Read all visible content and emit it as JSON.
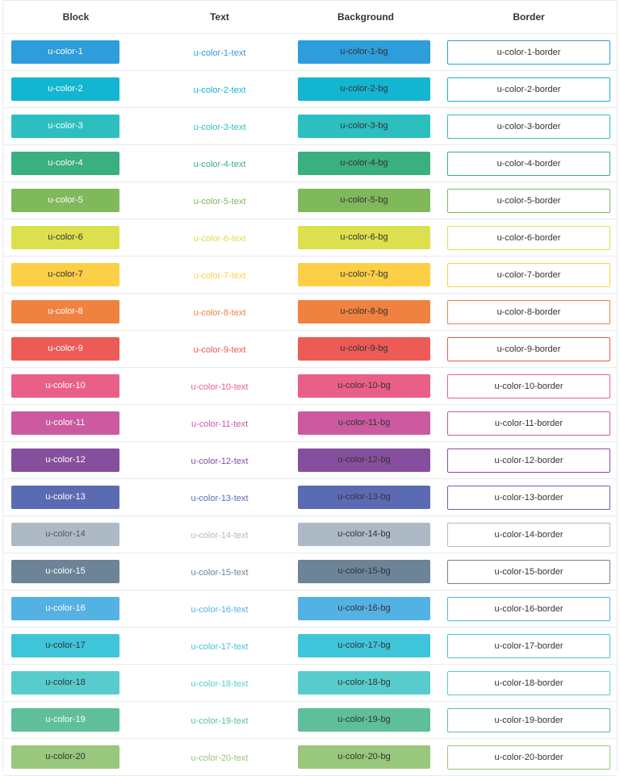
{
  "headers": {
    "block": "Block",
    "text": "Text",
    "background": "Background",
    "border": "Border"
  },
  "rows": [
    {
      "name": "u-color-1",
      "text_label": "u-color-1-text",
      "bg_label": "u-color-1-bg",
      "border_label": "u-color-1-border",
      "color": "#2d9ddb",
      "block_text_color": "#ffffff"
    },
    {
      "name": "u-color-2",
      "text_label": "u-color-2-text",
      "bg_label": "u-color-2-bg",
      "border_label": "u-color-2-border",
      "color": "#13b5d1",
      "block_text_color": "#ffffff"
    },
    {
      "name": "u-color-3",
      "text_label": "u-color-3-text",
      "bg_label": "u-color-3-bg",
      "border_label": "u-color-3-border",
      "color": "#2dbfbf",
      "block_text_color": "#ffffff"
    },
    {
      "name": "u-color-4",
      "text_label": "u-color-4-text",
      "bg_label": "u-color-4-bg",
      "border_label": "u-color-4-border",
      "color": "#3aaf7f",
      "block_text_color": "#ffffff"
    },
    {
      "name": "u-color-5",
      "text_label": "u-color-5-text",
      "bg_label": "u-color-5-bg",
      "border_label": "u-color-5-border",
      "color": "#80b95c",
      "block_text_color": "#ffffff"
    },
    {
      "name": "u-color-6",
      "text_label": "u-color-6-text",
      "bg_label": "u-color-6-bg",
      "border_label": "u-color-6-border",
      "color": "#dde04e",
      "block_text_color": "#333333"
    },
    {
      "name": "u-color-7",
      "text_label": "u-color-7-text",
      "bg_label": "u-color-7-bg",
      "border_label": "u-color-7-border",
      "color": "#fccf46",
      "block_text_color": "#333333"
    },
    {
      "name": "u-color-8",
      "text_label": "u-color-8-text",
      "bg_label": "u-color-8-bg",
      "border_label": "u-color-8-border",
      "color": "#ef8240",
      "block_text_color": "#ffffff"
    },
    {
      "name": "u-color-9",
      "text_label": "u-color-9-text",
      "bg_label": "u-color-9-bg",
      "border_label": "u-color-9-border",
      "color": "#ec5b55",
      "block_text_color": "#ffffff"
    },
    {
      "name": "u-color-10",
      "text_label": "u-color-10-text",
      "bg_label": "u-color-10-bg",
      "border_label": "u-color-10-border",
      "color": "#ea5f88",
      "block_text_color": "#ffffff"
    },
    {
      "name": "u-color-11",
      "text_label": "u-color-11-text",
      "bg_label": "u-color-11-bg",
      "border_label": "u-color-11-border",
      "color": "#cb5aa0",
      "block_text_color": "#ffffff"
    },
    {
      "name": "u-color-12",
      "text_label": "u-color-12-text",
      "bg_label": "u-color-12-bg",
      "border_label": "u-color-12-border",
      "color": "#864f9e",
      "block_text_color": "#ffffff"
    },
    {
      "name": "u-color-13",
      "text_label": "u-color-13-text",
      "bg_label": "u-color-13-bg",
      "border_label": "u-color-13-border",
      "color": "#5b6bb3",
      "block_text_color": "#ffffff"
    },
    {
      "name": "u-color-14",
      "text_label": "u-color-14-text",
      "bg_label": "u-color-14-bg",
      "border_label": "u-color-14-border",
      "color": "#adbac6",
      "block_text_color": "#555555"
    },
    {
      "name": "u-color-15",
      "text_label": "u-color-15-text",
      "bg_label": "u-color-15-bg",
      "border_label": "u-color-15-border",
      "color": "#6d8398",
      "block_text_color": "#ffffff"
    },
    {
      "name": "u-color-16",
      "text_label": "u-color-16-text",
      "bg_label": "u-color-16-bg",
      "border_label": "u-color-16-border",
      "color": "#54b1e4",
      "block_text_color": "#ffffff"
    },
    {
      "name": "u-color-17",
      "text_label": "u-color-17-text",
      "bg_label": "u-color-17-bg",
      "border_label": "u-color-17-border",
      "color": "#3fc5da",
      "block_text_color": "#333333"
    },
    {
      "name": "u-color-18",
      "text_label": "u-color-18-text",
      "bg_label": "u-color-18-bg",
      "border_label": "u-color-18-border",
      "color": "#58cccc",
      "block_text_color": "#333333"
    },
    {
      "name": "u-color-19",
      "text_label": "u-color-19-text",
      "bg_label": "u-color-19-bg",
      "border_label": "u-color-19-border",
      "color": "#5ebf98",
      "block_text_color": "#ffffff"
    },
    {
      "name": "u-color-20",
      "text_label": "u-color-20-text",
      "bg_label": "u-color-20-bg",
      "border_label": "u-color-20-border",
      "color": "#99c77c",
      "block_text_color": "#333333"
    }
  ]
}
